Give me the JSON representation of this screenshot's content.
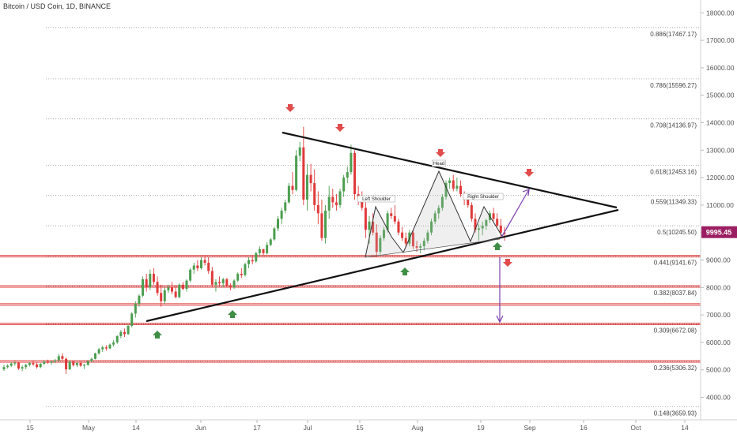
{
  "chart_data": {
    "type": "candlestick",
    "title": "Bitcoin / USD Coin, 1D, BINANCE",
    "current_price": "9995.45",
    "y_axis": {
      "range": [
        3500,
        18300
      ],
      "ticks": [
        "18000.00",
        "17000.00",
        "16000.00",
        "15000.00",
        "14000.00",
        "13000.00",
        "12000.00",
        "11000.00",
        "10000.00",
        "9000.00",
        "8000.00",
        "7000.00",
        "6000.00",
        "5000.00",
        "4000.00"
      ]
    },
    "x_axis": {
      "ticks": [
        "15",
        "May",
        "14",
        "Jun",
        "17",
        "Jul",
        "15",
        "Aug",
        "19",
        "Sep",
        "16",
        "Oct",
        "14"
      ]
    },
    "fib_levels": [
      {
        "ratio": 0.886,
        "price": 17467.17,
        "label": "0.886(17467.17)"
      },
      {
        "ratio": 0.786,
        "price": 15596.27,
        "label": "0.786(15596.27)"
      },
      {
        "ratio": 0.708,
        "price": 14136.97,
        "label": "0.708(14136.97)"
      },
      {
        "ratio": 0.618,
        "price": 12453.16,
        "label": "0.618(12453.16)"
      },
      {
        "ratio": 0.559,
        "price": 11349.33,
        "label": "0.559(11349.33)"
      },
      {
        "ratio": 0.5,
        "price": 10245.5,
        "label": "0.5(10245.50)"
      },
      {
        "ratio": 0.441,
        "price": 9141.67,
        "label": "0.441(9141.67)"
      },
      {
        "ratio": 0.382,
        "price": 8037.84,
        "label": "0.382(8037.84)"
      },
      {
        "ratio": 0.309,
        "price": 6672.08,
        "label": "0.309(6672.08)"
      },
      {
        "ratio": 0.236,
        "price": 5306.32,
        "label": "0.236(5306.32)"
      },
      {
        "ratio": 0.148,
        "price": 3659.93,
        "label": "0.148(3659.93)"
      }
    ],
    "red_levels": [
      9141.67,
      8037.84,
      7380,
      6672.08,
      5306.32
    ],
    "pattern_labels": [
      "Left Shoulder",
      "Head",
      "Right Shoulder"
    ],
    "colors": {
      "up": "#4c9e50",
      "down": "#e03a3a",
      "fib_line": "#888888",
      "red_level": "#e04040",
      "projection": "#7a3fb0",
      "price_tag": "#9c1e62"
    },
    "ohlc": [
      [
        5020,
        5180,
        4960,
        5100
      ],
      [
        5100,
        5200,
        5050,
        5150
      ],
      [
        5150,
        5280,
        5100,
        5230
      ],
      [
        5230,
        5320,
        5150,
        5260
      ],
      [
        5260,
        5290,
        5000,
        5050
      ],
      [
        5050,
        5160,
        4950,
        5100
      ],
      [
        5100,
        5220,
        5020,
        5180
      ],
      [
        5180,
        5290,
        5120,
        5250
      ],
      [
        5250,
        5330,
        5150,
        5200
      ],
      [
        5200,
        5280,
        5050,
        5100
      ],
      [
        5100,
        5250,
        5060,
        5220
      ],
      [
        5220,
        5350,
        5180,
        5300
      ],
      [
        5300,
        5370,
        5220,
        5260
      ],
      [
        5260,
        5330,
        5190,
        5310
      ],
      [
        5310,
        5400,
        5250,
        5350
      ],
      [
        5350,
        5580,
        5300,
        5500
      ],
      [
        5500,
        5600,
        5350,
        5400
      ],
      [
        5400,
        5450,
        4850,
        5020
      ],
      [
        5020,
        5350,
        4990,
        5300
      ],
      [
        5300,
        5350,
        5120,
        5170
      ],
      [
        5170,
        5280,
        5100,
        5250
      ],
      [
        5250,
        5310,
        5110,
        5150
      ],
      [
        5150,
        5220,
        5030,
        5180
      ],
      [
        5180,
        5350,
        5150,
        5320
      ],
      [
        5320,
        5450,
        5280,
        5400
      ],
      [
        5400,
        5620,
        5380,
        5600
      ],
      [
        5600,
        5800,
        5550,
        5750
      ],
      [
        5750,
        5880,
        5650,
        5820
      ],
      [
        5820,
        5900,
        5700,
        5780
      ],
      [
        5780,
        5960,
        5750,
        5920
      ],
      [
        5920,
        6080,
        5850,
        6000
      ],
      [
        6000,
        6260,
        5950,
        6230
      ],
      [
        6230,
        6450,
        6150,
        6380
      ],
      [
        6380,
        6500,
        6200,
        6300
      ],
      [
        6300,
        6650,
        6280,
        6600
      ],
      [
        6600,
        7100,
        6550,
        7050
      ],
      [
        7050,
        7500,
        6900,
        7400
      ],
      [
        7400,
        7750,
        7300,
        7700
      ],
      [
        7700,
        8400,
        7650,
        8300
      ],
      [
        8300,
        8500,
        7850,
        8000
      ],
      [
        8000,
        8650,
        7900,
        8500
      ],
      [
        8500,
        8700,
        8100,
        8200
      ],
      [
        8200,
        8400,
        7700,
        7800
      ],
      [
        7800,
        8100,
        7300,
        7500
      ],
      [
        7500,
        8000,
        7400,
        7900
      ],
      [
        7900,
        8100,
        7800,
        8000
      ],
      [
        8000,
        8200,
        7750,
        7850
      ],
      [
        7850,
        8050,
        7600,
        7650
      ],
      [
        7650,
        8150,
        7600,
        8100
      ],
      [
        8100,
        8200,
        7900,
        7950
      ],
      [
        7950,
        8300,
        7850,
        8250
      ],
      [
        8250,
        8700,
        8200,
        8650
      ],
      [
        8650,
        8900,
        8500,
        8800
      ],
      [
        8800,
        9000,
        8600,
        8700
      ],
      [
        8700,
        9100,
        8650,
        9000
      ],
      [
        9000,
        9150,
        8800,
        8900
      ],
      [
        8900,
        9100,
        8500,
        8600
      ],
      [
        8600,
        8750,
        8000,
        8100
      ],
      [
        8100,
        8300,
        7850,
        8200
      ],
      [
        8200,
        8400,
        8050,
        8150
      ],
      [
        8150,
        8350,
        8000,
        8300
      ],
      [
        8300,
        8350,
        8000,
        8050
      ],
      [
        8050,
        8150,
        7900,
        8000
      ],
      [
        8000,
        8300,
        7950,
        8250
      ],
      [
        8250,
        8550,
        8200,
        8500
      ],
      [
        8500,
        8700,
        8350,
        8450
      ],
      [
        8450,
        8900,
        8400,
        8850
      ],
      [
        8850,
        9100,
        8700,
        9000
      ],
      [
        9000,
        9150,
        8850,
        8950
      ],
      [
        8950,
        9300,
        8900,
        9250
      ],
      [
        9250,
        9500,
        9150,
        9400
      ],
      [
        9400,
        9350,
        9150,
        9250
      ],
      [
        9250,
        9650,
        9200,
        9550
      ],
      [
        9550,
        9800,
        9500,
        9750
      ],
      [
        9750,
        10200,
        9700,
        10150
      ],
      [
        10150,
        10600,
        10050,
        10500
      ],
      [
        10500,
        10900,
        10300,
        10800
      ],
      [
        10800,
        11200,
        10700,
        11100
      ],
      [
        11100,
        11800,
        11050,
        11700
      ],
      [
        11700,
        12200,
        11400,
        11550
      ],
      [
        11550,
        13000,
        11500,
        12800
      ],
      [
        12800,
        13300,
        12600,
        13100
      ],
      [
        13100,
        13850,
        11000,
        11200
      ],
      [
        11200,
        12500,
        10800,
        12100
      ],
      [
        12100,
        12500,
        11500,
        11800
      ],
      [
        11800,
        12300,
        10800,
        11000
      ],
      [
        11000,
        11500,
        10300,
        10700
      ],
      [
        10700,
        11200,
        9700,
        9800
      ],
      [
        9800,
        11000,
        9600,
        10800
      ],
      [
        10800,
        11700,
        10500,
        11300
      ],
      [
        11300,
        11600,
        10900,
        11100
      ],
      [
        11100,
        11400,
        10800,
        11000
      ],
      [
        11000,
        11600,
        10900,
        11500
      ],
      [
        11500,
        12100,
        11300,
        12000
      ],
      [
        12000,
        12400,
        11800,
        12200
      ],
      [
        12200,
        13200,
        12100,
        12900
      ],
      [
        12900,
        13000,
        11200,
        11400
      ],
      [
        11400,
        11700,
        11000,
        11300
      ],
      [
        11300,
        11500,
        10800,
        10900
      ],
      [
        10900,
        11100,
        9800,
        10100
      ],
      [
        10100,
        10600,
        9600,
        10400
      ],
      [
        10400,
        10700,
        9900,
        10000
      ],
      [
        10000,
        10300,
        9100,
        9300
      ],
      [
        9300,
        9900,
        9200,
        9800
      ],
      [
        9800,
        10200,
        9700,
        10100
      ],
      [
        10100,
        10800,
        10000,
        10700
      ],
      [
        10700,
        10900,
        10500,
        10600
      ],
      [
        10600,
        11000,
        10300,
        10400
      ],
      [
        10400,
        10500,
        9900,
        10000
      ],
      [
        10000,
        10200,
        9700,
        9800
      ],
      [
        9800,
        10000,
        9500,
        9600
      ],
      [
        9600,
        10100,
        9500,
        10000
      ],
      [
        10000,
        10100,
        9400,
        9500
      ],
      [
        9500,
        9700,
        9300,
        9450
      ],
      [
        9450,
        9600,
        9250,
        9500
      ],
      [
        9500,
        9800,
        9350,
        9700
      ],
      [
        9700,
        10100,
        9600,
        10000
      ],
      [
        10000,
        10500,
        9900,
        10400
      ],
      [
        10400,
        10800,
        10300,
        10700
      ],
      [
        10700,
        11000,
        10500,
        10900
      ],
      [
        10900,
        11400,
        10800,
        11300
      ],
      [
        11300,
        11900,
        11200,
        11800
      ],
      [
        11800,
        12000,
        11600,
        11900
      ],
      [
        11900,
        12100,
        11500,
        11600
      ],
      [
        11600,
        12000,
        11500,
        11700
      ],
      [
        11700,
        11900,
        11300,
        11400
      ],
      [
        11400,
        11500,
        11000,
        11200
      ],
      [
        11200,
        11400,
        10900,
        11000
      ],
      [
        11000,
        11100,
        10400,
        10500
      ],
      [
        10500,
        10700,
        10000,
        10100
      ],
      [
        10100,
        10300,
        9700,
        10150
      ],
      [
        10150,
        10400,
        9900,
        10250
      ],
      [
        10250,
        10500,
        10100,
        10450
      ],
      [
        10450,
        10800,
        10350,
        10700
      ],
      [
        10700,
        10900,
        10400,
        10500
      ],
      [
        10500,
        10700,
        10200,
        10250
      ],
      [
        10250,
        10500,
        9850,
        10000
      ],
      [
        10000,
        10200,
        9700,
        9950
      ]
    ]
  }
}
